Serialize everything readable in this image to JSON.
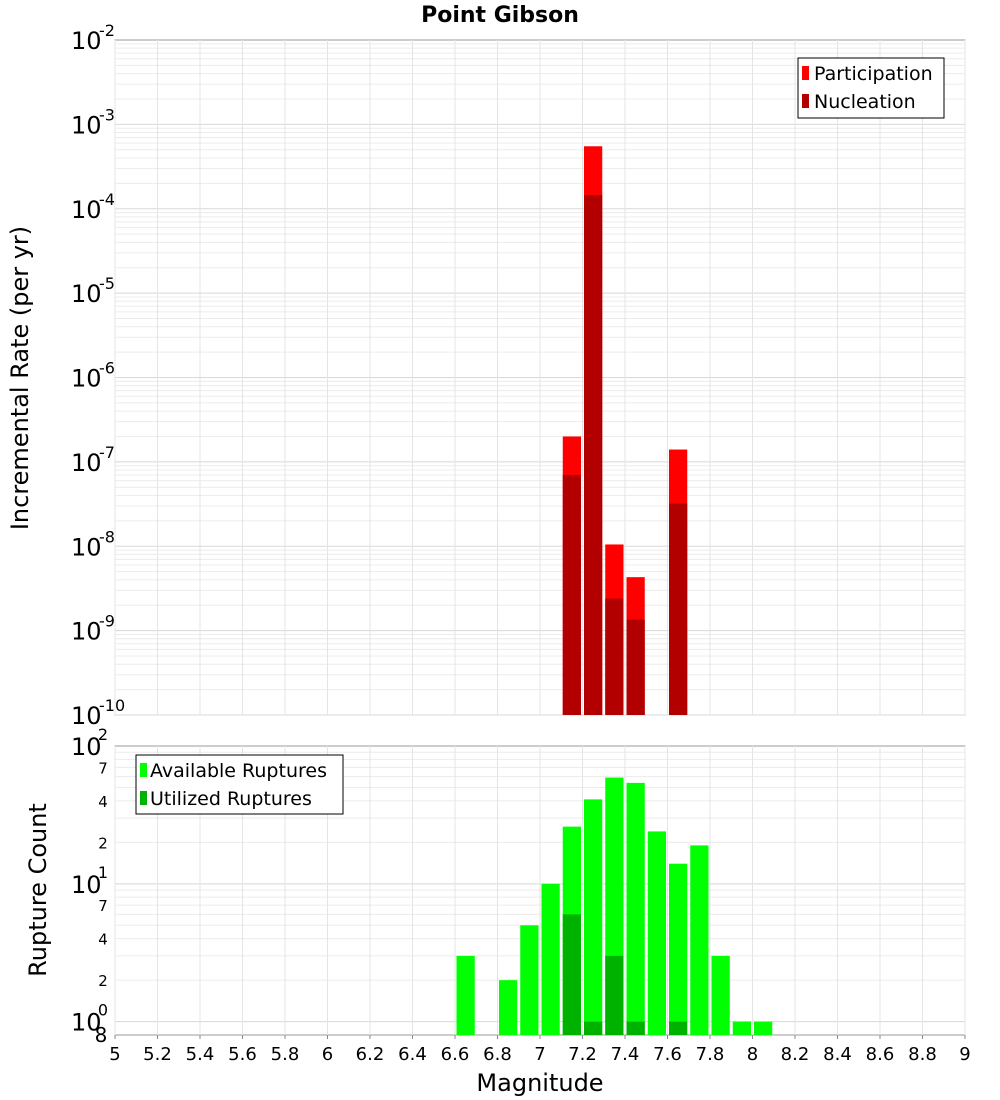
{
  "title": "Point Gibson",
  "x_axis": {
    "label": "Magnitude",
    "range": [
      5,
      9
    ],
    "ticks": [
      "5",
      "5.2",
      "5.4",
      "5.6",
      "5.8",
      "6",
      "6.2",
      "6.4",
      "6.6",
      "6.8",
      "7",
      "7.2",
      "7.4",
      "7.6",
      "7.8",
      "8",
      "8.2",
      "8.4",
      "8.6",
      "8.8",
      "9"
    ]
  },
  "chart_data": [
    {
      "type": "bar",
      "scale": "log",
      "ylabel": "Incremental Rate (per yr)",
      "xlabel": "",
      "ylim": [
        1e-10,
        0.01
      ],
      "y_tick_exponents": [
        "-10",
        "-9",
        "-8",
        "-7",
        "-6",
        "-5",
        "-4",
        "-3",
        "-2"
      ],
      "grid": true,
      "legend_position": "top-right",
      "legend": [
        "Participation",
        "Nucleation"
      ],
      "colors": {
        "Participation": "#ff0000",
        "Nucleation": "#b20000"
      },
      "series": [
        {
          "name": "Participation",
          "x": [
            7.15,
            7.25,
            7.35,
            7.45,
            7.65
          ],
          "values": [
            2e-07,
            0.00055,
            1.05e-08,
            4.3e-09,
            1.4e-07
          ]
        },
        {
          "name": "Nucleation",
          "x": [
            7.15,
            7.25,
            7.35,
            7.45,
            7.65
          ],
          "values": [
            7e-08,
            0.000145,
            2.4e-09,
            1.35e-09,
            3.2e-08
          ]
        }
      ]
    },
    {
      "type": "bar",
      "scale": "log",
      "ylabel": "Rupture Count",
      "xlabel": "Magnitude",
      "ylim": [
        0.8,
        100
      ],
      "y_major_tick_exponents": [
        "0",
        "1",
        "2"
      ],
      "y_minor_tick_labels": [
        {
          "value": 2,
          "label": "2"
        },
        {
          "value": 4,
          "label": "4"
        },
        {
          "value": 7,
          "label": "7"
        },
        {
          "value": 20,
          "label": "2"
        },
        {
          "value": 40,
          "label": "4"
        },
        {
          "value": 70,
          "label": "7"
        }
      ],
      "y_bottom_label": "8",
      "grid": true,
      "legend_position": "top-left",
      "legend": [
        "Available Ruptures",
        "Utilized Ruptures"
      ],
      "colors": {
        "Available Ruptures": "#00ff00",
        "Utilized Ruptures": "#00b200"
      },
      "series": [
        {
          "name": "Available Ruptures",
          "x": [
            6.65,
            6.85,
            6.95,
            7.05,
            7.15,
            7.25,
            7.35,
            7.45,
            7.55,
            7.65,
            7.75,
            7.85,
            7.95,
            8.05
          ],
          "values": [
            3,
            2,
            5,
            10,
            26,
            41,
            59,
            54,
            24,
            14,
            19,
            3,
            1,
            1
          ]
        },
        {
          "name": "Utilized Ruptures",
          "x": [
            7.15,
            7.25,
            7.35,
            7.45,
            7.65
          ],
          "values": [
            6,
            1,
            3,
            1,
            1
          ]
        }
      ]
    }
  ]
}
